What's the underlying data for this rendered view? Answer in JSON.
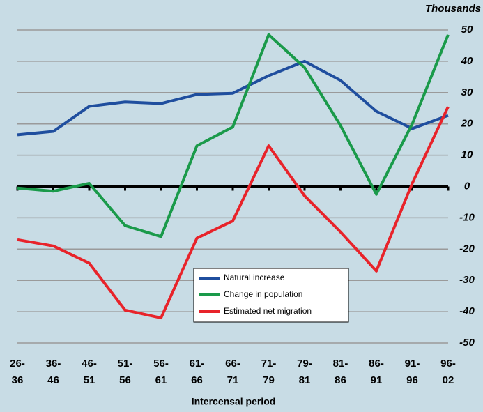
{
  "chart_data": {
    "type": "line",
    "y_unit_label": "Thousands",
    "x_label": "Intercensal period",
    "categories": [
      "26-\n36",
      "36-\n46",
      "46-\n51",
      "51-\n56",
      "56-\n61",
      "61-\n66",
      "66-\n71",
      "71-\n79",
      "79-\n81",
      "81-\n86",
      "86-\n91",
      "91-\n96",
      "96-\n02"
    ],
    "series": [
      {
        "name": "Natural increase",
        "color": "#1f4e9e",
        "values": [
          16.5,
          17.6,
          25.6,
          27,
          26.5,
          29.4,
          29.8,
          35.4,
          40,
          33.9,
          24,
          18.5,
          22.7
        ]
      },
      {
        "name": "Change in population",
        "color": "#1a9a4a",
        "values": [
          -0.5,
          -1.5,
          1,
          -12.5,
          -16,
          13,
          19,
          48.5,
          38,
          19.5,
          -2.5,
          20,
          48.5
        ]
      },
      {
        "name": "Estimated net migration",
        "color": "#e8232a",
        "values": [
          -17,
          -19,
          -24.5,
          -39.5,
          -42,
          -16.5,
          -11,
          13,
          -3,
          -14.5,
          -27,
          1,
          25.5
        ]
      }
    ],
    "ylim": [
      -50,
      50
    ],
    "yticks": [
      -50,
      -40,
      -30,
      -20,
      -10,
      0,
      10,
      20,
      30,
      40,
      50
    ],
    "grid": true
  }
}
